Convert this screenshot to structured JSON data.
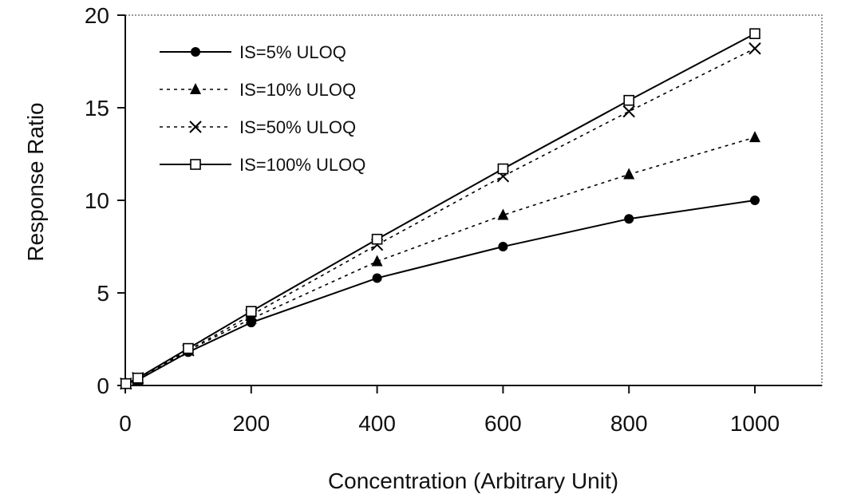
{
  "chart_data": {
    "type": "line",
    "xlabel": "Concentration (Arbitrary Unit)",
    "ylabel": "Response Ratio",
    "xlim": [
      0,
      1000
    ],
    "ylim": [
      0,
      20
    ],
    "xticks": [
      0,
      200,
      400,
      600,
      800,
      1000
    ],
    "yticks": [
      0,
      5,
      10,
      15,
      20
    ],
    "grid": false,
    "legend_position": "top-left",
    "x": [
      1,
      20,
      100,
      200,
      400,
      600,
      800,
      1000
    ],
    "series": [
      {
        "name": "IS=5% ULOQ",
        "marker": "circle",
        "line": "solid",
        "values": [
          0.1,
          0.3,
          1.8,
          3.4,
          5.8,
          7.5,
          9.0,
          10.0
        ]
      },
      {
        "name": "IS=10% ULOQ",
        "marker": "triangle",
        "line": "dotted",
        "values": [
          0.1,
          0.3,
          1.9,
          3.6,
          6.7,
          9.2,
          11.4,
          13.4
        ]
      },
      {
        "name": "IS=50% ULOQ",
        "marker": "x",
        "line": "dotted",
        "values": [
          0.1,
          0.4,
          1.9,
          3.8,
          7.6,
          11.3,
          14.8,
          18.2
        ]
      },
      {
        "name": "IS=100% ULOQ",
        "marker": "square-open",
        "line": "solid",
        "values": [
          0.1,
          0.4,
          2.0,
          4.0,
          7.9,
          11.7,
          15.4,
          19.0
        ]
      }
    ]
  }
}
